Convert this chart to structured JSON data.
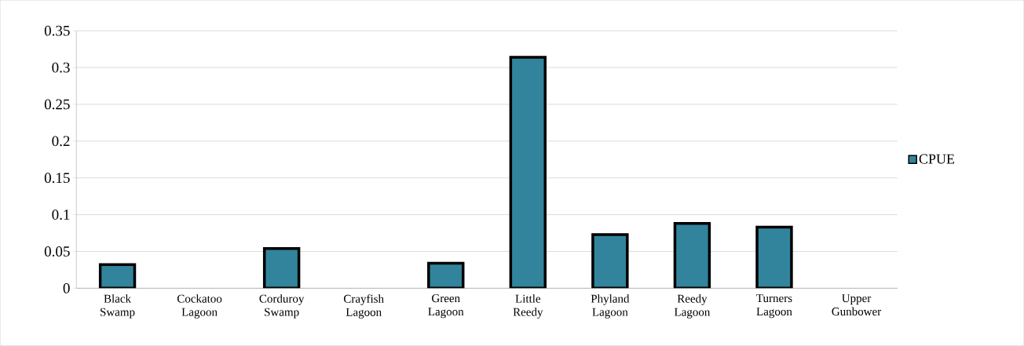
{
  "chart_data": {
    "type": "bar",
    "categories": [
      "Black Swamp",
      "Cockatoo Lagoon",
      "Corduroy Swamp",
      "Crayfish Lagoon",
      "Green Lagoon",
      "Little Reedy",
      "Phyland Lagoon",
      "Reedy Lagoon",
      "Turners Lagoon",
      "Upper Gunbower"
    ],
    "series": [
      {
        "name": "CPUE",
        "color": "#31849b",
        "values": [
          0.032,
          null,
          0.054,
          null,
          0.034,
          0.314,
          0.073,
          0.088,
          0.083,
          null
        ]
      }
    ],
    "ylim": [
      0,
      0.35
    ],
    "yticks": [
      0,
      0.05,
      0.1,
      0.15,
      0.2,
      0.25,
      0.3,
      0.35
    ],
    "grid": "y",
    "legend": "right"
  }
}
